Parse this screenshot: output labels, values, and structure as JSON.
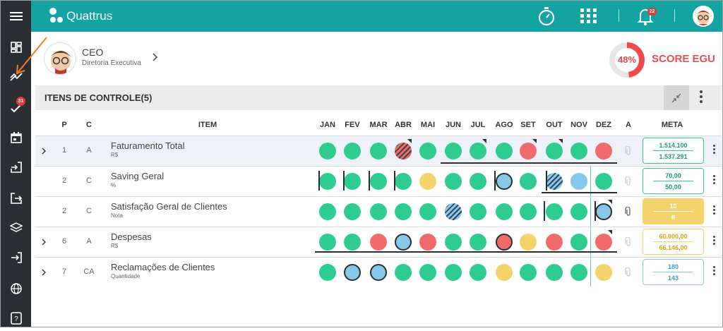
{
  "app": {
    "name": "Quattrus"
  },
  "header": {
    "notifications": "22"
  },
  "sidebar": {
    "badge": "31"
  },
  "profile": {
    "role": "CEO",
    "department": "Diretoria Executiva"
  },
  "score": {
    "percent": "48%",
    "label": "SCORE EGU",
    "value": 0.48,
    "color": "#ef4b4d"
  },
  "section": {
    "title": "ITENS DE CONTROLE(5)"
  },
  "columns": {
    "p": "P",
    "c": "C",
    "item": "ITEM",
    "a": "A",
    "meta": "META",
    "months": [
      "JAN",
      "FEV",
      "MAR",
      "ABR",
      "MAI",
      "JUN",
      "JUL",
      "AGO",
      "SET",
      "OUT",
      "NOV",
      "DEZ"
    ]
  },
  "rows": [
    {
      "p": "1",
      "c": "A",
      "name": "Faturamento Total",
      "unit": "R$",
      "expandable": true,
      "status": [
        "green",
        "green",
        "green",
        "hatch-red",
        "green",
        "green",
        "green",
        "green",
        "red",
        "green",
        "green",
        "red"
      ],
      "meta": {
        "v1": "1.514.100",
        "v2": "1.537.291",
        "style": "green"
      }
    },
    {
      "p": "2",
      "c": "C",
      "name": "Saving Geral",
      "unit": "%",
      "expandable": false,
      "status": [
        "green",
        "green",
        "green",
        "green",
        "yellow",
        "green",
        "green",
        "blue",
        "green",
        "hatch-blue",
        "lightblue",
        "green"
      ],
      "meta": {
        "v1": "70,00",
        "v2": "50,00",
        "style": "green"
      }
    },
    {
      "p": "2",
      "c": "C",
      "name": "Satisfação Geral de Clientes",
      "unit": "Nota",
      "expandable": false,
      "status": [
        "green",
        "green",
        "green",
        "green",
        "green",
        "hatch-blue",
        "green",
        "green",
        "green",
        "green",
        "green",
        "blue"
      ],
      "meta": {
        "v1": "10",
        "v2": "8",
        "style": "yellow-fill"
      }
    },
    {
      "p": "6",
      "c": "A",
      "name": "Despesas",
      "unit": "R$",
      "expandable": true,
      "status": [
        "green",
        "green",
        "red",
        "blue",
        "red",
        "green",
        "green",
        "red-ring",
        "yellow",
        "red",
        "green",
        "red"
      ],
      "meta": {
        "v1": "60.000,00",
        "v2": "66.146,00",
        "style": "yellow"
      }
    },
    {
      "p": "7",
      "c": "CA",
      "name": "Reclamações de Clientes",
      "unit": "Quantidade",
      "expandable": true,
      "status": [
        "green",
        "blue",
        "blue",
        "green",
        "green",
        "green",
        "green",
        "yellow",
        "green",
        "green",
        "green",
        "yellow"
      ],
      "meta": {
        "v1": "180",
        "v2": "143",
        "style": "blue"
      }
    }
  ],
  "colors": {
    "header": "#13a3a0",
    "sidebar": "#2b2f33",
    "green": "#2ecc8f",
    "red": "#f26b6b",
    "yellow": "#f4d36b",
    "blue": "#85c8ea"
  }
}
